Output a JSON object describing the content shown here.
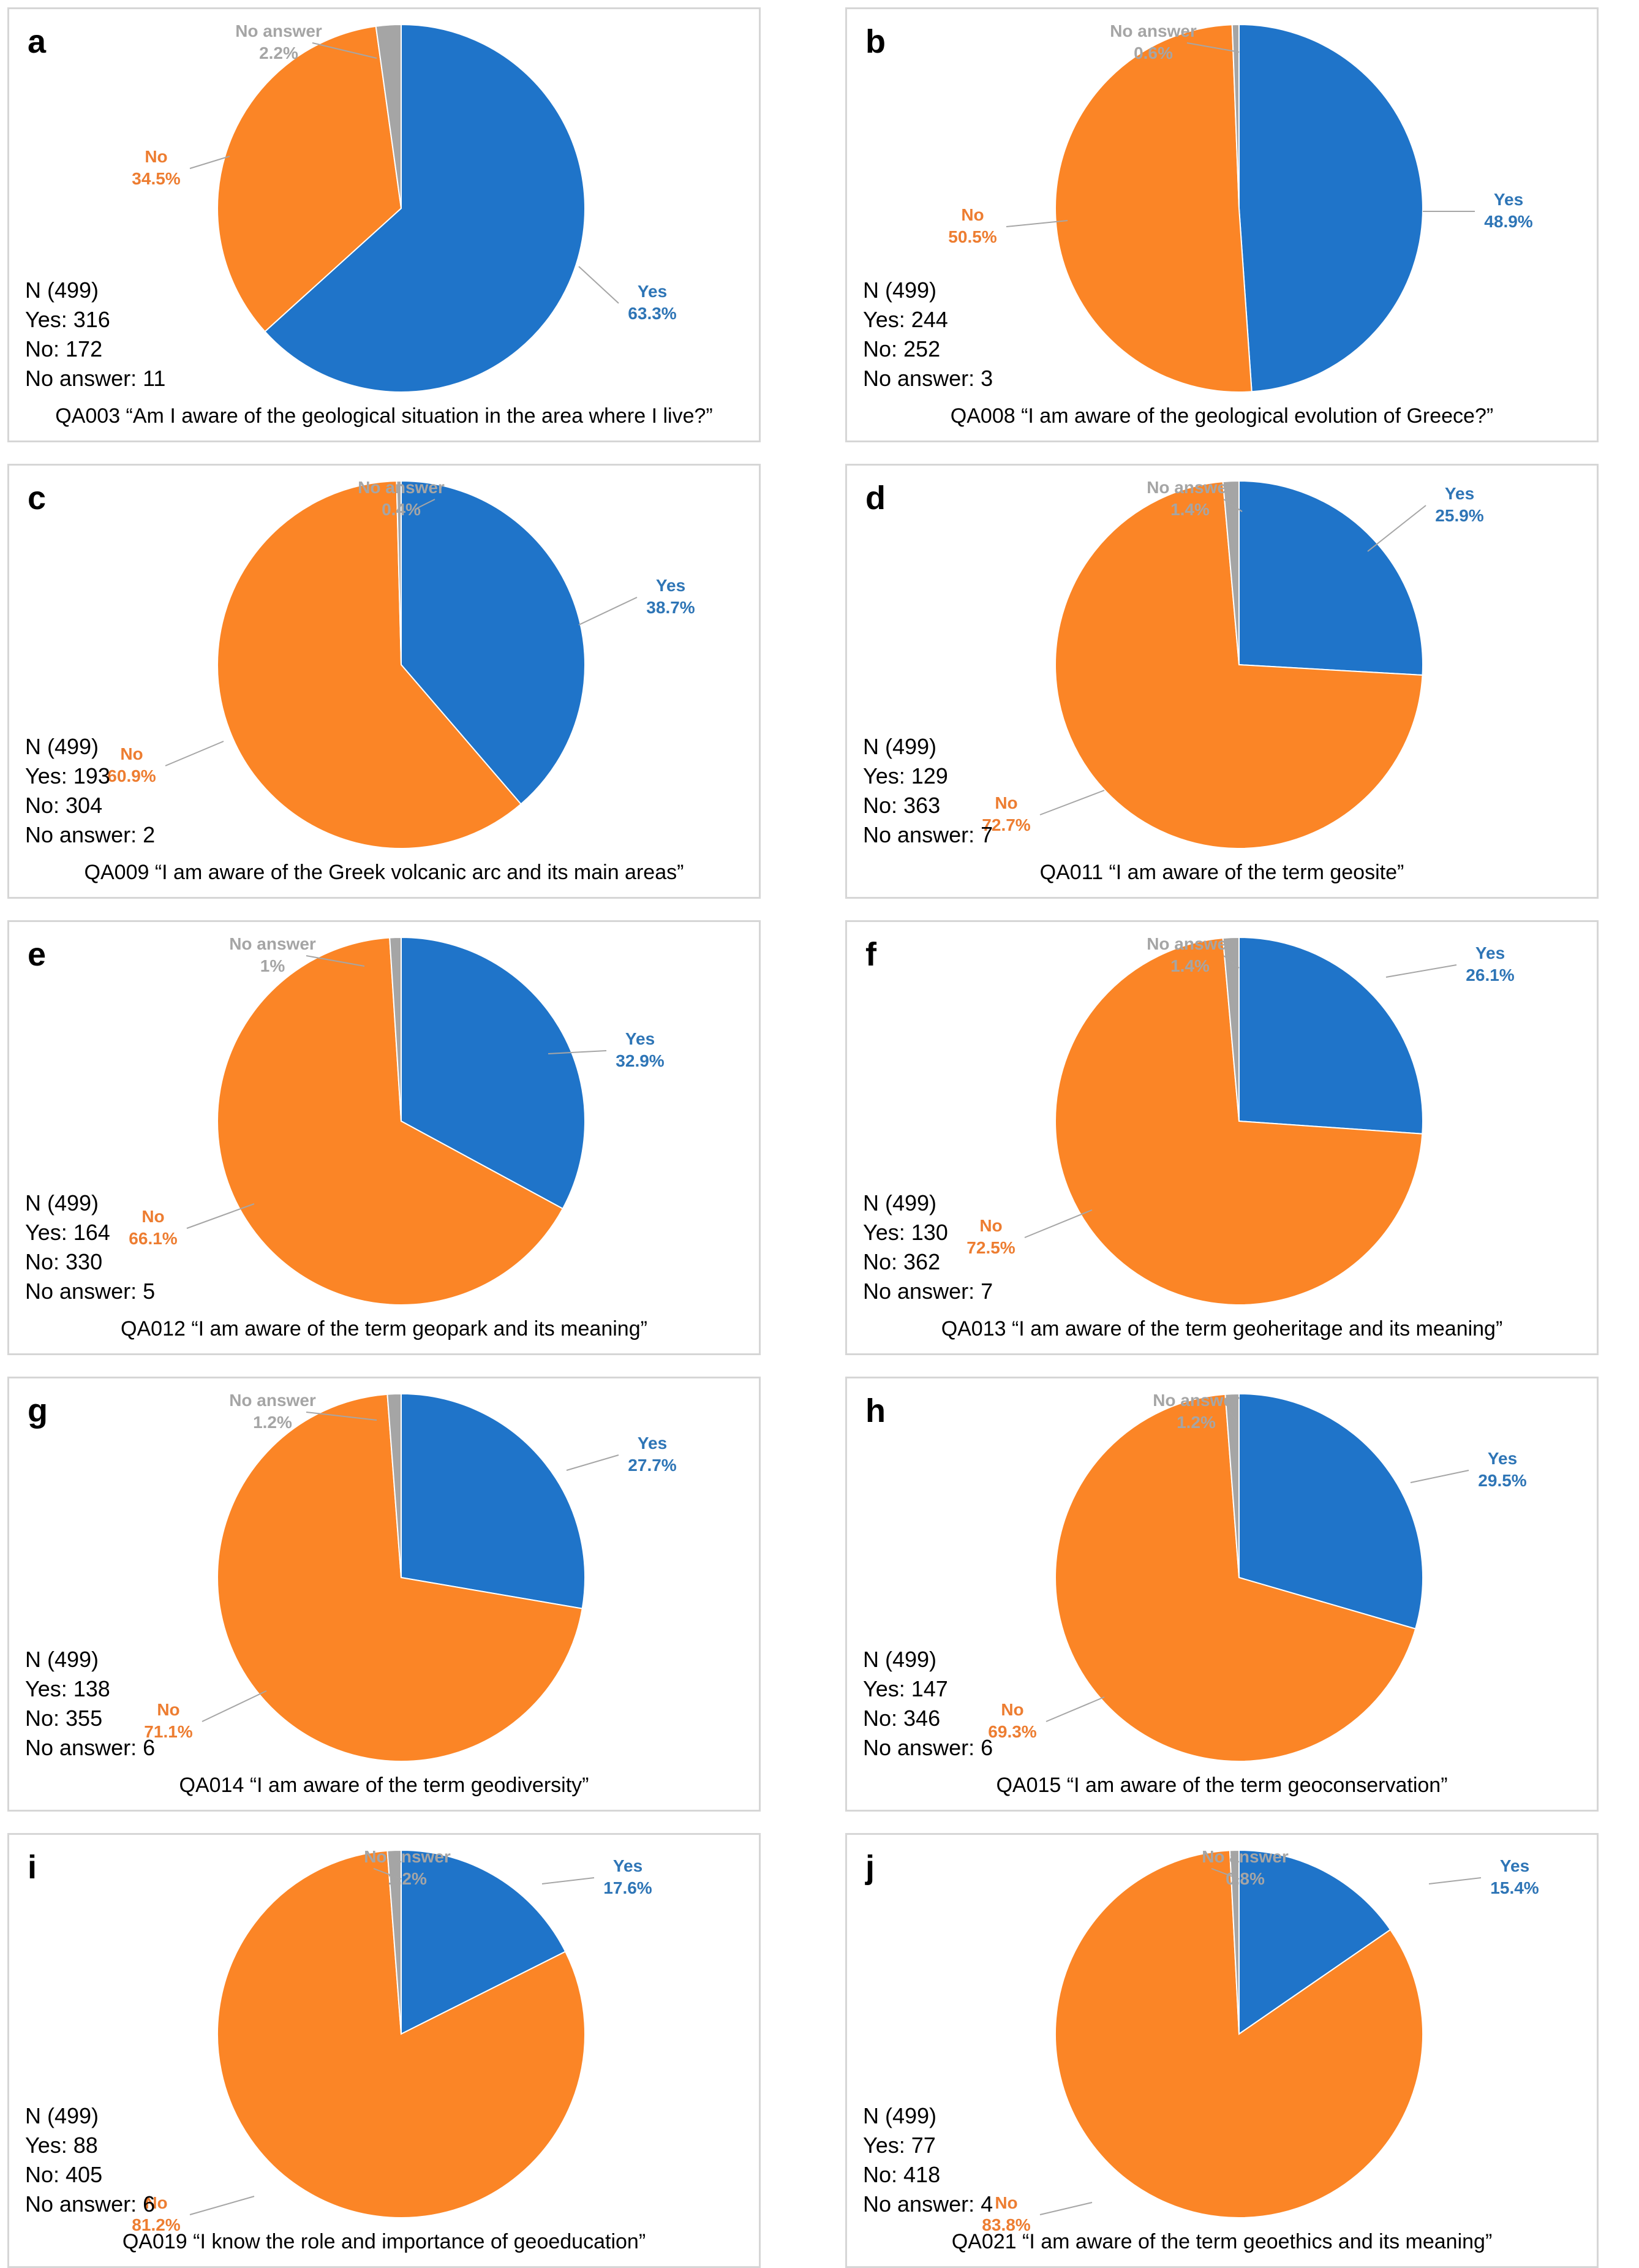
{
  "colors": {
    "yes": "#1f74c9",
    "no": "#fb8526",
    "no_answer": "#a5a5a5"
  },
  "chart_data": [
    {
      "type": "pie",
      "panel": "a",
      "categories": [
        "Yes",
        "No",
        "No answer"
      ],
      "values": [
        63.3,
        34.5,
        2.2
      ],
      "pct_labels": [
        "63.3%",
        "34.5%",
        "2.2%"
      ],
      "stats": {
        "n": "N (499)",
        "yes": "Yes: 316",
        "no": "No: 172",
        "no_answer": "No answer: 11"
      },
      "caption": "QA003 “Am I aware of the geological situation in the area where I live?”"
    },
    {
      "type": "pie",
      "panel": "b",
      "categories": [
        "Yes",
        "No",
        "No answer"
      ],
      "values": [
        48.9,
        50.5,
        0.6
      ],
      "pct_labels": [
        "48.9%",
        "50.5%",
        "0.6%"
      ],
      "stats": {
        "n": "N (499)",
        "yes": "Yes: 244",
        "no": "No: 252",
        "no_answer": "No answer: 3"
      },
      "caption": "QA008 “I am aware of the geological evolution of Greece?”"
    },
    {
      "type": "pie",
      "panel": "c",
      "categories": [
        "Yes",
        "No",
        "No answer"
      ],
      "values": [
        38.7,
        60.9,
        0.4
      ],
      "pct_labels": [
        "38.7%",
        "60.9%",
        "0.4%"
      ],
      "stats": {
        "n": "N (499)",
        "yes": "Yes: 193",
        "no": "No: 304",
        "no_answer": "No answer: 2"
      },
      "caption": "QA009 “I am aware of the Greek volcanic arc and its main areas”"
    },
    {
      "type": "pie",
      "panel": "d",
      "categories": [
        "Yes",
        "No",
        "No answer"
      ],
      "values": [
        25.9,
        72.7,
        1.4
      ],
      "pct_labels": [
        "25.9%",
        "72.7%",
        "1.4%"
      ],
      "stats": {
        "n": "N (499)",
        "yes": "Yes: 129",
        "no": "No: 363",
        "no_answer": "No answer: 7"
      },
      "caption": "QA011 “I am aware of the term geosite”"
    },
    {
      "type": "pie",
      "panel": "e",
      "categories": [
        "Yes",
        "No",
        "No answer"
      ],
      "values": [
        32.9,
        66.1,
        1.0
      ],
      "pct_labels": [
        "32.9%",
        "66.1%",
        "1%"
      ],
      "stats": {
        "n": "N (499)",
        "yes": "Yes: 164",
        "no": "No: 330",
        "no_answer": "No answer: 5"
      },
      "caption": "QA012 “I am aware of the term geopark and its meaning”"
    },
    {
      "type": "pie",
      "panel": "f",
      "categories": [
        "Yes",
        "No",
        "No answer"
      ],
      "values": [
        26.1,
        72.5,
        1.4
      ],
      "pct_labels": [
        "26.1%",
        "72.5%",
        "1.4%"
      ],
      "stats": {
        "n": "N (499)",
        "yes": "Yes: 130",
        "no": "No: 362",
        "no_answer": "No answer: 7"
      },
      "caption": "QA013 “I am aware of the term geoheritage and its meaning”"
    },
    {
      "type": "pie",
      "panel": "g",
      "categories": [
        "Yes",
        "No",
        "No answer"
      ],
      "values": [
        27.7,
        71.1,
        1.2
      ],
      "pct_labels": [
        "27.7%",
        "71.1%",
        "1.2%"
      ],
      "stats": {
        "n": "N (499)",
        "yes": "Yes: 138",
        "no": "No: 355",
        "no_answer": "No answer: 6"
      },
      "caption": "QA014 “I am aware of the term geodiversity”"
    },
    {
      "type": "pie",
      "panel": "h",
      "categories": [
        "Yes",
        "No",
        "No answer"
      ],
      "values": [
        29.5,
        69.3,
        1.2
      ],
      "pct_labels": [
        "29.5%",
        "69.3%",
        "1.2%"
      ],
      "stats": {
        "n": "N (499)",
        "yes": "Yes: 147",
        "no": "No: 346",
        "no_answer": "No answer: 6"
      },
      "caption": "QA015 “I am aware of the term geoconservation”"
    },
    {
      "type": "pie",
      "panel": "i",
      "categories": [
        "Yes",
        "No",
        "No answer"
      ],
      "values": [
        17.6,
        81.2,
        1.2
      ],
      "pct_labels": [
        "17.6%",
        "81.2%",
        "1.2%"
      ],
      "stats": {
        "n": "N (499)",
        "yes": "Yes: 88",
        "no": "No: 405",
        "no_answer": "No answer: 6"
      },
      "caption": "QA019 “I know the role and importance of geoeducation”"
    },
    {
      "type": "pie",
      "panel": "j",
      "categories": [
        "Yes",
        "No",
        "No answer"
      ],
      "values": [
        15.4,
        83.8,
        0.8
      ],
      "pct_labels": [
        "15.4%",
        "83.8%",
        "0.8%"
      ],
      "stats": {
        "n": "N (499)",
        "yes": "Yes: 77",
        "no": "No: 418",
        "no_answer": "No answer: 4"
      },
      "caption": "QA021 “I am aware of the term geoethics and its meaning”"
    }
  ]
}
